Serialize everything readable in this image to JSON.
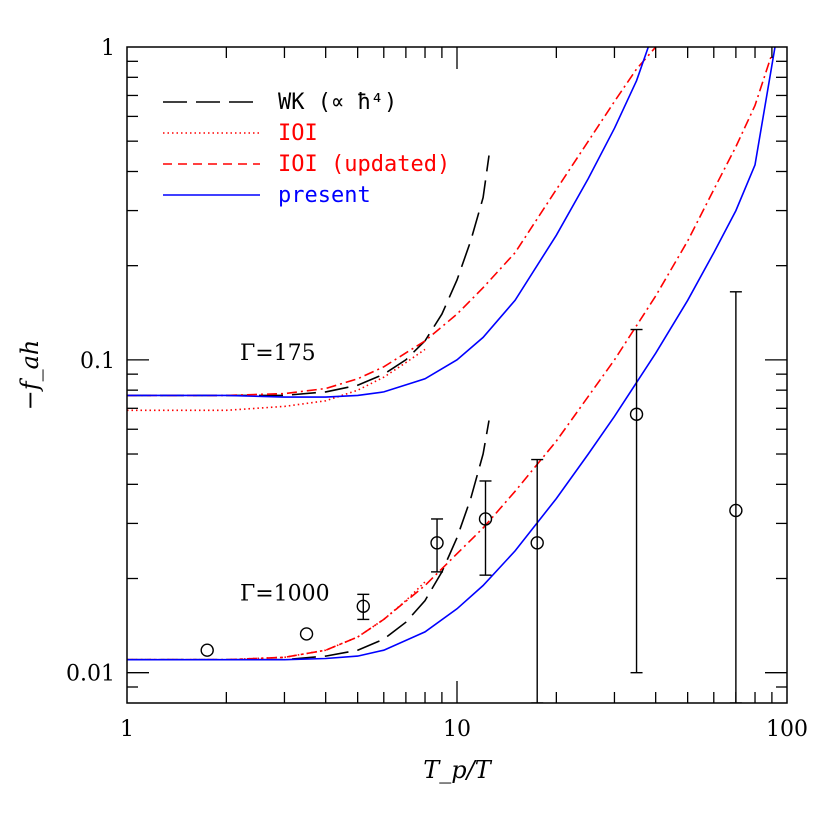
{
  "chart_data": {
    "type": "line",
    "xlabel": "T_p/T",
    "ylabel": "−f_ah",
    "xscale": "log",
    "yscale": "log",
    "xlim": [
      1,
      100
    ],
    "ylim": [
      0.008,
      1
    ],
    "x_tick_labels": [
      "1",
      "10",
      "100"
    ],
    "y_tick_labels": [
      "0.01",
      "0.1",
      "1"
    ],
    "legend_placement": "top-left",
    "legend": [
      {
        "label": "WK (∝ ħ⁴)",
        "style": "longdash",
        "color": "#000000"
      },
      {
        "label": "IOI",
        "style": "dotted",
        "color": "#ff0000"
      },
      {
        "label": "IOI (updated)",
        "style": "dashed",
        "color": "#ff0000"
      },
      {
        "label": "present",
        "style": "solid",
        "color": "#0000ff"
      }
    ],
    "annotations": [
      {
        "text": "Γ=175",
        "x": 2.2,
        "y": 0.1
      },
      {
        "text": "Γ=1000",
        "x": 2.2,
        "y": 0.017
      }
    ],
    "series": [
      {
        "group": "Γ=175",
        "style": "longdash",
        "color": "#000000",
        "x": [
          1,
          3,
          4,
          5,
          6,
          7,
          8,
          9,
          10,
          11,
          12,
          12.5
        ],
        "y": [
          0.077,
          0.077,
          0.079,
          0.083,
          0.09,
          0.1,
          0.115,
          0.14,
          0.18,
          0.24,
          0.33,
          0.45
        ]
      },
      {
        "group": "Γ=175",
        "style": "dotted",
        "color": "#ff0000",
        "x": [
          1,
          2,
          3,
          4,
          5,
          6,
          7,
          8
        ],
        "y": [
          0.069,
          0.069,
          0.071,
          0.074,
          0.08,
          0.088,
          0.098,
          0.108
        ]
      },
      {
        "group": "Γ=175",
        "style": "dashdot",
        "color": "#ff0000",
        "x": [
          1,
          2,
          3,
          4,
          5,
          6,
          8,
          10,
          12,
          15,
          20,
          25,
          30,
          35,
          40
        ],
        "y": [
          0.077,
          0.077,
          0.078,
          0.081,
          0.087,
          0.095,
          0.115,
          0.14,
          0.17,
          0.22,
          0.35,
          0.5,
          0.67,
          0.85,
          1.0
        ]
      },
      {
        "group": "Γ=175",
        "style": "solid",
        "color": "#0000ff",
        "x": [
          1,
          2,
          3,
          4,
          5,
          6,
          8,
          10,
          12,
          15,
          20,
          25,
          30,
          35,
          38
        ],
        "y": [
          0.077,
          0.077,
          0.076,
          0.076,
          0.077,
          0.079,
          0.087,
          0.1,
          0.118,
          0.155,
          0.25,
          0.38,
          0.55,
          0.78,
          1.0
        ]
      },
      {
        "group": "Γ=1000",
        "style": "longdash",
        "color": "#000000",
        "x": [
          1,
          3,
          4,
          5,
          6,
          7,
          8,
          9,
          10,
          11,
          12,
          12.5
        ],
        "y": [
          0.011,
          0.011,
          0.0113,
          0.0118,
          0.0128,
          0.0145,
          0.017,
          0.021,
          0.027,
          0.036,
          0.05,
          0.064
        ]
      },
      {
        "group": "Γ=1000",
        "style": "dotted",
        "color": "#ff0000",
        "x": [
          1,
          2,
          3,
          4,
          5,
          6,
          7,
          8
        ],
        "y": [
          0.011,
          0.011,
          0.0112,
          0.0118,
          0.013,
          0.0148,
          0.017,
          0.0195
        ]
      },
      {
        "group": "Γ=1000",
        "style": "dashdot",
        "color": "#ff0000",
        "x": [
          1,
          2,
          3,
          4,
          5,
          6,
          8,
          10,
          12,
          15,
          20,
          30,
          40,
          50,
          60,
          70,
          80,
          90
        ],
        "y": [
          0.011,
          0.011,
          0.0112,
          0.0118,
          0.013,
          0.0148,
          0.019,
          0.024,
          0.029,
          0.038,
          0.055,
          0.1,
          0.16,
          0.24,
          0.35,
          0.48,
          0.65,
          0.95
        ]
      },
      {
        "group": "Γ=1000",
        "style": "solid",
        "color": "#0000ff",
        "x": [
          1,
          3,
          4,
          5,
          6,
          8,
          10,
          12,
          15,
          20,
          25,
          30,
          40,
          50,
          60,
          70,
          80,
          92
        ],
        "y": [
          0.011,
          0.011,
          0.0111,
          0.0113,
          0.0118,
          0.0135,
          0.016,
          0.019,
          0.0245,
          0.036,
          0.05,
          0.066,
          0.105,
          0.155,
          0.22,
          0.3,
          0.42,
          1.0
        ]
      }
    ],
    "data_points": [
      {
        "x": 1.75,
        "y": 0.0118
      },
      {
        "x": 3.5,
        "y": 0.0133
      },
      {
        "x": 5.2,
        "y": 0.0163,
        "ylow": 0.0148,
        "yhigh": 0.0178
      },
      {
        "x": 8.7,
        "y": 0.026,
        "ylow": 0.021,
        "yhigh": 0.031
      },
      {
        "x": 12.2,
        "y": 0.031,
        "ylow": 0.0205,
        "yhigh": 0.041
      },
      {
        "x": 17.5,
        "y": 0.026,
        "ylow": 0.008,
        "yhigh": 0.048
      },
      {
        "x": 35,
        "y": 0.067,
        "ylow": 0.01,
        "yhigh": 0.125
      },
      {
        "x": 70,
        "y": 0.033,
        "ylow": 0.008,
        "yhigh": 0.165
      }
    ]
  }
}
